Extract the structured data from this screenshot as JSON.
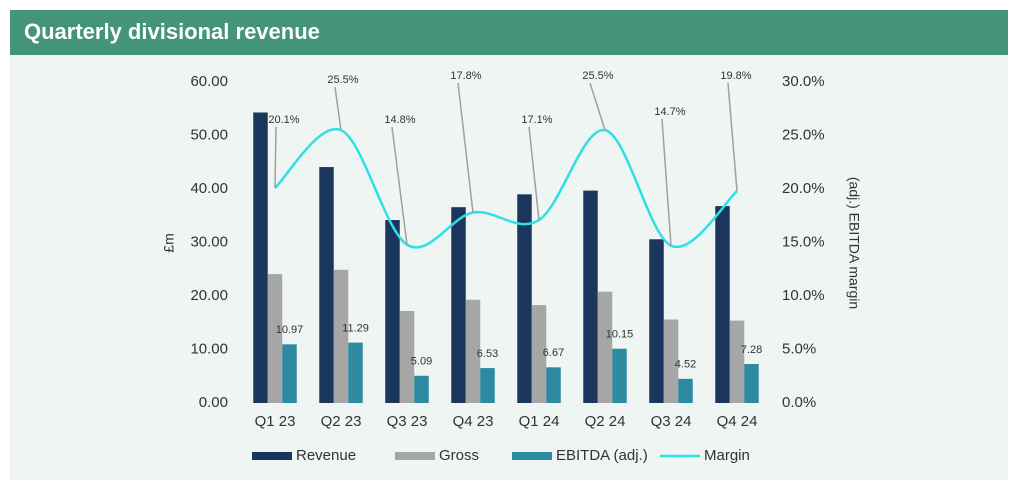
{
  "chart_data": {
    "type": "bar-line",
    "title": "Quarterly divisional revenue",
    "y_label": "£m",
    "y2_label": "(adj.) EBITDA margin",
    "categories": [
      "Q1 23",
      "Q2 23",
      "Q3 23",
      "Q4 23",
      "Q1 24",
      "Q2 24",
      "Q3 24",
      "Q4 24"
    ],
    "series": [
      {
        "name": "Revenue",
        "color": "#1b365d",
        "type": "bar",
        "values": [
          54.3,
          44.1,
          34.2,
          36.6,
          39.0,
          39.7,
          30.6,
          36.8
        ]
      },
      {
        "name": "Gross",
        "color": "#a6a6a6",
        "type": "bar",
        "values": [
          24.1,
          24.9,
          17.2,
          19.3,
          18.3,
          20.8,
          15.6,
          15.4
        ]
      },
      {
        "name": "EBITDA (adj.)",
        "color": "#2e8aa0",
        "type": "bar",
        "values": [
          10.97,
          11.29,
          5.09,
          6.53,
          6.67,
          10.15,
          4.52,
          7.28
        ]
      },
      {
        "name": "Margin",
        "color": "#2ee0e6",
        "type": "line",
        "axis": "y2",
        "values": [
          20.1,
          25.5,
          14.8,
          17.8,
          17.1,
          25.5,
          14.7,
          19.8
        ],
        "value_labels": [
          "20.1%",
          "25.5%",
          "14.8%",
          "17.8%",
          "17.1%",
          "25.5%",
          "14.7%",
          "19.8%"
        ]
      }
    ],
    "ylim": [
      0,
      60
    ],
    "yticks": [
      {
        "value": 0,
        "label": "0.00"
      },
      {
        "value": 10,
        "label": "10.00"
      },
      {
        "value": 20,
        "label": "20.00"
      },
      {
        "value": 30,
        "label": "30.00"
      },
      {
        "value": 40,
        "label": "40.00"
      },
      {
        "value": 50,
        "label": "50.00"
      },
      {
        "value": 60,
        "label": "60.00"
      }
    ],
    "y2lim": [
      0,
      30
    ],
    "y2ticks": [
      {
        "value": 0,
        "label": "0.0%"
      },
      {
        "value": 5,
        "label": "5.0%"
      },
      {
        "value": 10,
        "label": "10.0%"
      },
      {
        "value": 15,
        "label": "15.0%"
      },
      {
        "value": 20,
        "label": "20.0%"
      },
      {
        "value": 25,
        "label": "25.0%"
      },
      {
        "value": 30,
        "label": "30.0%"
      }
    ],
    "legend": "bottom"
  }
}
